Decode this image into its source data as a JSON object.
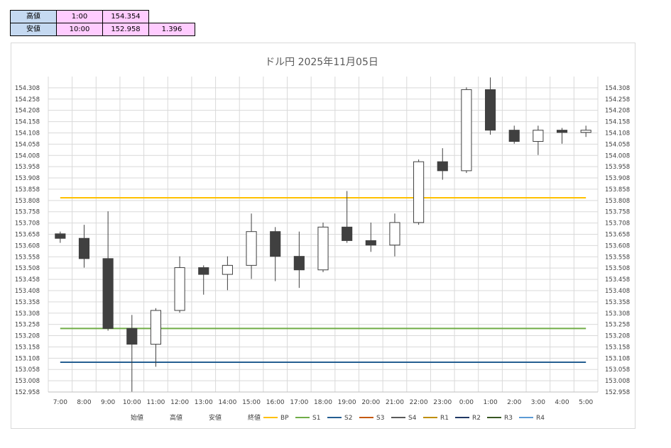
{
  "info_table": {
    "rows": [
      {
        "label": "高値",
        "time": "1:00",
        "price": "154.354",
        "extra": ""
      },
      {
        "label": "安値",
        "time": "10:00",
        "price": "152.958",
        "extra": "1.396"
      }
    ]
  },
  "chart_data": {
    "type": "candlestick",
    "title": "ドル円  2025年11月05日",
    "categories": [
      "7:00",
      "8:00",
      "9:00",
      "10:00",
      "11:00",
      "12:00",
      "13:00",
      "14:00",
      "15:00",
      "16:00",
      "17:00",
      "18:00",
      "19:00",
      "20:00",
      "21:00",
      "22:00",
      "23:00",
      "0:00",
      "1:00",
      "2:00",
      "3:00",
      "4:00",
      "5:00"
    ],
    "candles": [
      {
        "open": 153.66,
        "high": 153.67,
        "low": 153.62,
        "close": 153.64
      },
      {
        "open": 153.64,
        "high": 153.7,
        "low": 153.51,
        "close": 153.55
      },
      {
        "open": 153.55,
        "high": 153.76,
        "low": 153.23,
        "close": 153.24
      },
      {
        "open": 153.24,
        "high": 153.3,
        "low": 152.958,
        "close": 153.17
      },
      {
        "open": 153.17,
        "high": 153.33,
        "low": 153.07,
        "close": 153.32
      },
      {
        "open": 153.32,
        "high": 153.56,
        "low": 153.31,
        "close": 153.51
      },
      {
        "open": 153.51,
        "high": 153.52,
        "low": 153.39,
        "close": 153.48
      },
      {
        "open": 153.48,
        "high": 153.56,
        "low": 153.41,
        "close": 153.52
      },
      {
        "open": 153.52,
        "high": 153.75,
        "low": 153.46,
        "close": 153.67
      },
      {
        "open": 153.67,
        "high": 153.69,
        "low": 153.45,
        "close": 153.56
      },
      {
        "open": 153.56,
        "high": 153.67,
        "low": 153.42,
        "close": 153.5
      },
      {
        "open": 153.5,
        "high": 153.71,
        "low": 153.49,
        "close": 153.69
      },
      {
        "open": 153.69,
        "high": 153.85,
        "low": 153.62,
        "close": 153.63
      },
      {
        "open": 153.63,
        "high": 153.71,
        "low": 153.58,
        "close": 153.61
      },
      {
        "open": 153.61,
        "high": 153.75,
        "low": 153.56,
        "close": 153.71
      },
      {
        "open": 153.71,
        "high": 153.99,
        "low": 153.7,
        "close": 153.98
      },
      {
        "open": 153.98,
        "high": 154.04,
        "low": 153.9,
        "close": 153.94
      },
      {
        "open": 153.94,
        "high": 154.31,
        "low": 153.93,
        "close": 154.3
      },
      {
        "open": 154.3,
        "high": 154.354,
        "low": 154.1,
        "close": 154.12
      },
      {
        "open": 154.12,
        "high": 154.14,
        "low": 154.06,
        "close": 154.07
      },
      {
        "open": 154.07,
        "high": 154.14,
        "low": 154.01,
        "close": 154.12
      },
      {
        "open": 154.12,
        "high": 154.13,
        "low": 154.06,
        "close": 154.11
      },
      {
        "open": 154.11,
        "high": 154.14,
        "low": 154.09,
        "close": 154.12
      }
    ],
    "lines": [
      {
        "name": "BP",
        "value": 153.82,
        "color": "#ffc000",
        "visible": true
      },
      {
        "name": "S1",
        "value": 153.24,
        "color": "#70ad47",
        "visible": true
      },
      {
        "name": "S2",
        "value": 153.09,
        "color": "#255e91",
        "visible": true
      },
      {
        "name": "S3",
        "color": "#c55a11",
        "visible": false
      },
      {
        "name": "S4",
        "color": "#595959",
        "visible": false
      },
      {
        "name": "R1",
        "color": "#bf8f00",
        "visible": false
      },
      {
        "name": "R2",
        "color": "#203864",
        "visible": false
      },
      {
        "name": "R3",
        "color": "#375623",
        "visible": false
      },
      {
        "name": "R4",
        "color": "#5b9bd5",
        "visible": false
      }
    ],
    "legend_items": [
      "始値",
      "高値",
      "安値",
      "終値"
    ],
    "ylim": [
      152.958,
      154.358
    ],
    "y_ticks": [
      "154.308",
      "154.258",
      "154.208",
      "154.158",
      "154.108",
      "154.058",
      "154.008",
      "153.958",
      "153.908",
      "153.858",
      "153.808",
      "153.758",
      "153.708",
      "153.658",
      "153.608",
      "153.558",
      "153.508",
      "153.458",
      "153.408",
      "153.358",
      "153.308",
      "153.258",
      "153.208",
      "153.158",
      "153.108",
      "153.058",
      "153.008",
      "152.958"
    ],
    "grid": true,
    "legend_placement": "bottom",
    "colors": {
      "bear_body": "#404040",
      "bull_body": "#ffffff",
      "outline": "#404040",
      "grid": "#d9d9d9"
    }
  }
}
